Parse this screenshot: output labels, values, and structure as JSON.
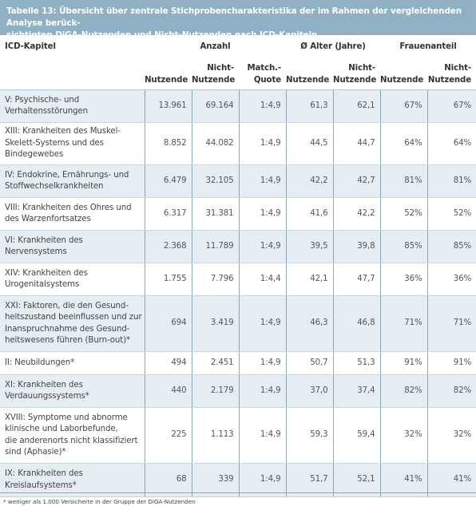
{
  "title_lines": [
    "Tabelle 13: Übersicht über zentrale Stichprobencharakteristika der im Rahmen der vergleichenden Analyse berück-",
    "sichtigten DiGA-Nutzenden und Nicht-Nutzenden nach ICD-Kapiteln"
  ],
  "header": {
    "icd": "ICD-Kapitel",
    "anzahl": "Anzahl",
    "alter": "Ø Alter (Jahre)",
    "frauen": "Frauenanteil",
    "nutzende": "Nutzende",
    "nicht_nutzende_1": "Nicht-",
    "nicht_nutzende_2": "Nutzende",
    "match_1": "Match.-",
    "match_2": "Quote"
  },
  "rows": [
    {
      "label": [
        "V: Psychische- und",
        "Verhaltensstörungen"
      ],
      "n": "13.961",
      "nn": "69.164",
      "q": "1:4,9",
      "an": "61,3",
      "ann": "62,1",
      "fn": "67%",
      "fnn": "67%"
    },
    {
      "label": [
        "XIII: Krankheiten des Muskel-",
        "Skelett-Systems und des",
        "Bindegewebes"
      ],
      "n": "8.852",
      "nn": "44.082",
      "q": "1:4,9",
      "an": "44,5",
      "ann": "44,7",
      "fn": "64%",
      "fnn": "64%"
    },
    {
      "label": [
        "IV: Endokrine, Ernährungs- und",
        "Stoffwechselkrankheiten"
      ],
      "n": "6.479",
      "nn": "32.105",
      "q": "1:4,9",
      "an": "42,2",
      "ann": "42,7",
      "fn": "81%",
      "fnn": "81%"
    },
    {
      "label": [
        "VIII: Krankheiten des Ohres und",
        "des Warzenfortsatzes"
      ],
      "n": "6.317",
      "nn": "31.381",
      "q": "1:4,9",
      "an": "41,6",
      "ann": "42,2",
      "fn": "52%",
      "fnn": "52%"
    },
    {
      "label": [
        "VI: Krankheiten des",
        "Nervensystems"
      ],
      "n": "2.368",
      "nn": "11.789",
      "q": "1:4,9",
      "an": "39,5",
      "ann": "39,8",
      "fn": "85%",
      "fnn": "85%"
    },
    {
      "label": [
        "XIV: Krankheiten des",
        "Urogenitalsystems"
      ],
      "n": "1.755",
      "nn": "7.796",
      "q": "1:4,4",
      "an": "42,1",
      "ann": "47,7",
      "fn": "36%",
      "fnn": "36%"
    },
    {
      "label": [
        "XXI: Faktoren, die den Gesund-",
        "heitszustand beeinflussen und zur",
        "Inanspruchnahme des Gesund-",
        "heitswesens führen (Burn-out)*"
      ],
      "n": "694",
      "nn": "3.419",
      "q": "1:4,9",
      "an": "46,3",
      "ann": "46,8",
      "fn": "71%",
      "fnn": "71%"
    },
    {
      "label": [
        "II: Neubildungen*"
      ],
      "n": "494",
      "nn": "2.451",
      "q": "1:4,9",
      "an": "50,7",
      "ann": "51,3",
      "fn": "91%",
      "fnn": "91%"
    },
    {
      "label": [
        "XI: Krankheiten des",
        "Verdauungssystems*"
      ],
      "n": "440",
      "nn": "2.179",
      "q": "1:4,9",
      "an": "37,0",
      "ann": "37,4",
      "fn": "82%",
      "fnn": "82%"
    },
    {
      "label": [
        "XVIII: Symptome und abnorme",
        "klinische und Laborbefunde,",
        "die anderenorts nicht klassifiziert",
        "sind (Aphasie)*"
      ],
      "n": "225",
      "nn": "1.113",
      "q": "1:4,9",
      "an": "59,3",
      "ann": "59,4",
      "fn": "32%",
      "fnn": "32%"
    },
    {
      "label": [
        "IX: Krankheiten des",
        "Kreislaufsystems*"
      ],
      "n": "68",
      "nn": "339",
      "q": "1:4,9",
      "an": "51,7",
      "ann": "52,1",
      "fn": "41%",
      "fnn": "41%"
    }
  ],
  "footnote": "* weniger als 1.000 Versicherte in der Gruppe der DiGA-Nutzenden"
}
